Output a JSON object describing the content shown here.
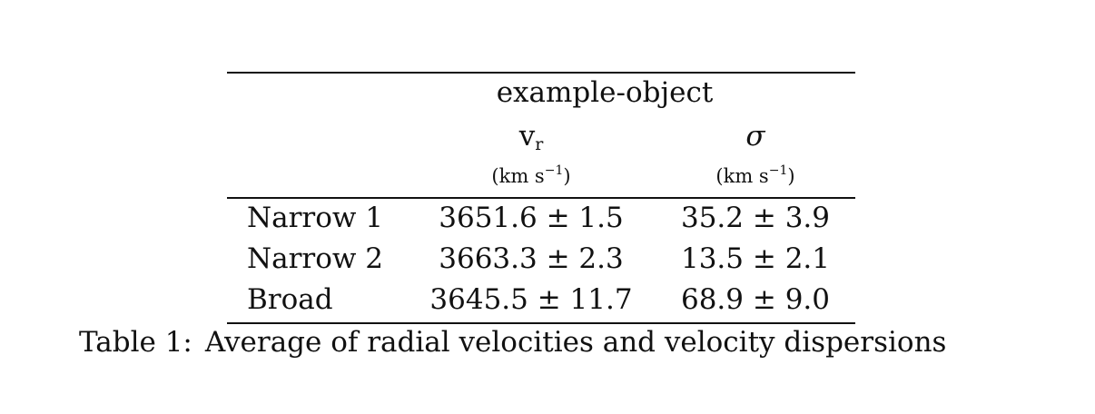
{
  "table": {
    "object_name": "example-object",
    "columns": [
      {
        "symbol": "v",
        "subscript": "r",
        "unit_base": "(km s",
        "unit_exp": "−1",
        "unit_close": ")"
      },
      {
        "symbol": "σ",
        "unit_base": "(km s",
        "unit_exp": "−1",
        "unit_close": ")"
      }
    ],
    "rows": [
      {
        "label": "Narrow 1",
        "vr": "3651.6 ± 1.5",
        "sigma": "35.2 ± 3.9"
      },
      {
        "label": "Narrow 2",
        "vr": "3663.3 ± 2.3",
        "sigma": "13.5 ± 2.1"
      },
      {
        "label": "Broad",
        "vr": "3645.5 ± 11.7",
        "sigma": "68.9 ± 9.0"
      }
    ]
  },
  "caption": {
    "label": "Table 1:",
    "text": "Average of radial velocities and velocity dispersions"
  }
}
